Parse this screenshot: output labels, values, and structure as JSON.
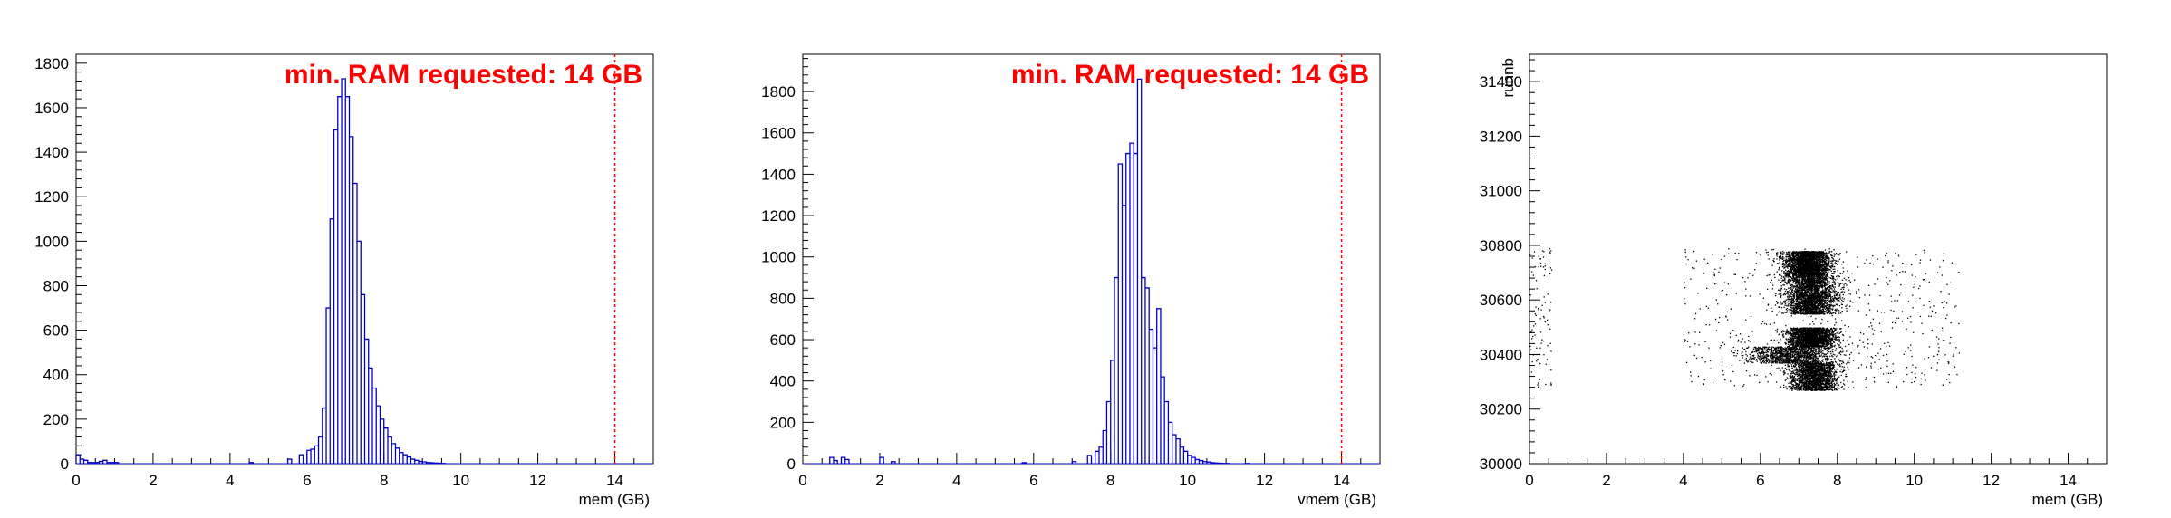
{
  "chart_data": [
    {
      "type": "histogram",
      "xlabel": "mem (GB)",
      "ylabel": "",
      "xlim": [
        0,
        15
      ],
      "ylim": [
        0,
        1840
      ],
      "xticks": [
        "0",
        "2",
        "4",
        "6",
        "8",
        "10",
        "12",
        "14"
      ],
      "yticks": [
        "0",
        "200",
        "400",
        "600",
        "800",
        "1000",
        "1200",
        "1400",
        "1600",
        "1800"
      ],
      "annotation": "min. RAM requested: 14 GB",
      "threshold_x": 14,
      "colors": {
        "line": "#0000cc",
        "threshold": "#ff0000",
        "annotation": "#ff0000"
      },
      "bin_width": 0.1,
      "bins_x": [
        0.0,
        0.1,
        0.2,
        0.3,
        0.4,
        0.5,
        0.6,
        0.7,
        0.8,
        0.9,
        1.0,
        4.5,
        5.5,
        5.8,
        6.0,
        6.1,
        6.2,
        6.3,
        6.4,
        6.5,
        6.6,
        6.7,
        6.8,
        6.9,
        7.0,
        7.1,
        7.2,
        7.3,
        7.4,
        7.5,
        7.6,
        7.7,
        7.8,
        7.9,
        8.0,
        8.1,
        8.2,
        8.3,
        8.4,
        8.5,
        8.6,
        8.7,
        8.8,
        8.9,
        9.0,
        9.1,
        9.2,
        9.3,
        9.4,
        9.5
      ],
      "counts": [
        40,
        20,
        15,
        5,
        5,
        5,
        10,
        15,
        5,
        5,
        5,
        5,
        20,
        40,
        60,
        65,
        80,
        120,
        250,
        700,
        1100,
        1500,
        1650,
        1730,
        1650,
        1470,
        1260,
        1000,
        760,
        560,
        430,
        340,
        260,
        200,
        160,
        120,
        90,
        70,
        50,
        40,
        30,
        20,
        15,
        10,
        8,
        5,
        4,
        3,
        2,
        1
      ]
    },
    {
      "type": "histogram",
      "xlabel": "vmem (GB)",
      "ylabel": "",
      "xlim": [
        0,
        15
      ],
      "ylim": [
        0,
        1980
      ],
      "xticks": [
        "0",
        "2",
        "4",
        "6",
        "8",
        "10",
        "12",
        "14"
      ],
      "yticks": [
        "0",
        "200",
        "400",
        "600",
        "800",
        "1000",
        "1200",
        "1400",
        "1600",
        "1800"
      ],
      "annotation": "min. RAM requested: 14 GB",
      "threshold_x": 14,
      "colors": {
        "line": "#0000cc",
        "threshold": "#ff0000",
        "annotation": "#ff0000"
      },
      "bin_width": 0.1,
      "bins_x": [
        0.7,
        0.8,
        1.0,
        1.1,
        2.0,
        2.3,
        5.7,
        7.0,
        7.4,
        7.6,
        7.7,
        7.8,
        7.9,
        8.0,
        8.1,
        8.2,
        8.3,
        8.4,
        8.5,
        8.6,
        8.7,
        8.8,
        8.9,
        9.0,
        9.1,
        9.2,
        9.3,
        9.4,
        9.5,
        9.6,
        9.7,
        9.8,
        9.9,
        10.0,
        10.1,
        10.2,
        10.3,
        10.4,
        10.5,
        10.6,
        10.7,
        10.8,
        10.9,
        11.0,
        11.5
      ],
      "counts": [
        30,
        15,
        30,
        20,
        30,
        10,
        5,
        10,
        40,
        60,
        80,
        160,
        300,
        500,
        900,
        1450,
        1250,
        1500,
        1550,
        1500,
        1860,
        900,
        850,
        650,
        560,
        750,
        420,
        300,
        200,
        140,
        120,
        80,
        60,
        40,
        30,
        20,
        15,
        10,
        8,
        5,
        3,
        2,
        1,
        1,
        1
      ]
    },
    {
      "type": "scatter",
      "xlabel": "mem (GB)",
      "ylabel": "runnb",
      "xlim": [
        0,
        15
      ],
      "ylim": [
        30000,
        31500
      ],
      "xticks": [
        "0",
        "2",
        "4",
        "6",
        "8",
        "10",
        "12",
        "14"
      ],
      "yticks": [
        "30000",
        "30200",
        "30400",
        "30600",
        "30800",
        "31000",
        "31200",
        "31400"
      ],
      "colors": {
        "point": "#000000"
      },
      "run_bands": [
        {
          "run_min": 30690,
          "run_max": 30780,
          "mem_center": 7.2,
          "mem_spread": 0.5,
          "points": 2400
        },
        {
          "run_min": 30550,
          "run_max": 30690,
          "mem_center": 7.3,
          "mem_spread": 0.55,
          "points": 2600
        },
        {
          "run_min": 30430,
          "run_max": 30500,
          "mem_center": 7.3,
          "mem_spread": 0.5,
          "points": 2000
        },
        {
          "run_min": 30370,
          "run_max": 30430,
          "mem_center": 6.8,
          "mem_spread": 0.9,
          "points": 1200
        },
        {
          "run_min": 30270,
          "run_max": 30370,
          "mem_center": 7.4,
          "mem_spread": 0.5,
          "points": 1900
        }
      ],
      "outliers": [
        {
          "run_min": 30280,
          "run_max": 30790,
          "mem_min": 0.0,
          "mem_max": 0.6,
          "points": 90
        },
        {
          "run_min": 30280,
          "run_max": 30790,
          "mem_min": 4.0,
          "mem_max": 11.2,
          "points": 600
        }
      ]
    }
  ]
}
